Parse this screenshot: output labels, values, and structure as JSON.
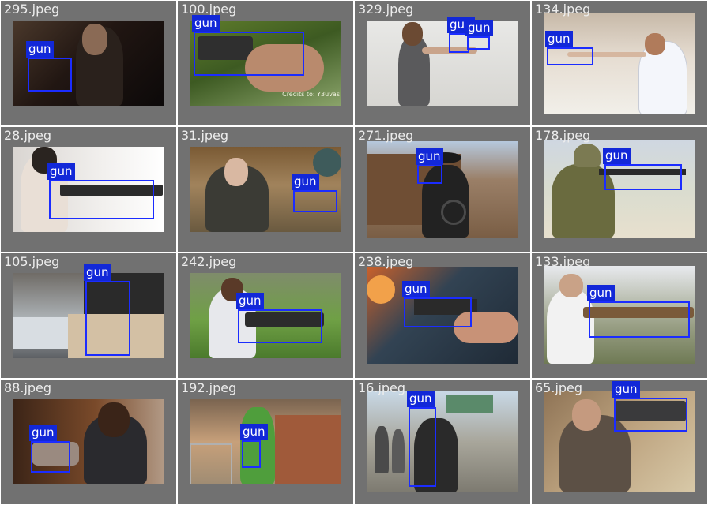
{
  "label_color": "#1228d8",
  "box_color": "#1b2cff",
  "cells": [
    {
      "file": "295.jpeg",
      "detections": [
        "gun"
      ]
    },
    {
      "file": "100.jpeg",
      "detections": [
        "gun"
      ],
      "photo_caption": "Credits to: Y3uvas"
    },
    {
      "file": "329.jpeg",
      "detections": [
        "gun",
        "gun"
      ]
    },
    {
      "file": "134.jpeg",
      "detections": [
        "gun"
      ]
    },
    {
      "file": "28.jpeg",
      "detections": [
        "gun"
      ]
    },
    {
      "file": "31.jpeg",
      "detections": [
        "gun"
      ]
    },
    {
      "file": "271.jpeg",
      "detections": [
        "gun"
      ]
    },
    {
      "file": "178.jpeg",
      "detections": [
        "gun"
      ]
    },
    {
      "file": "105.jpeg",
      "detections": [
        "gun"
      ]
    },
    {
      "file": "242.jpeg",
      "detections": [
        "gun"
      ]
    },
    {
      "file": "238.jpeg",
      "detections": [
        "gun"
      ]
    },
    {
      "file": "133.jpeg",
      "detections": [
        "gun"
      ]
    },
    {
      "file": "88.jpeg",
      "detections": [
        "gun"
      ]
    },
    {
      "file": "192.jpeg",
      "detections": [
        "gun"
      ]
    },
    {
      "file": "16.jpeg",
      "detections": [
        "gun"
      ]
    },
    {
      "file": "65.jpeg",
      "detections": [
        "gun"
      ]
    }
  ]
}
